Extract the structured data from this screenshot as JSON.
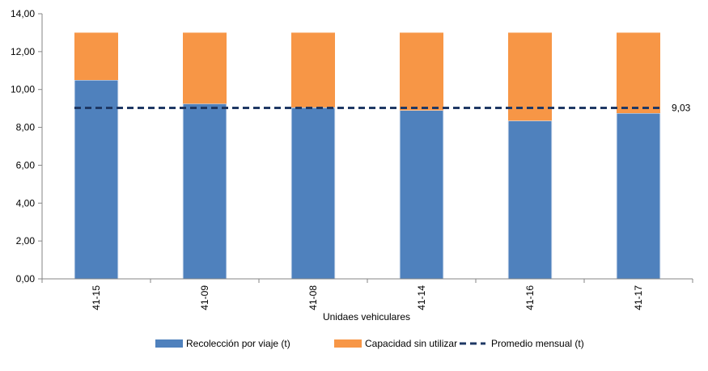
{
  "chart_data": {
    "type": "bar",
    "stacked": true,
    "categories": [
      "41-15",
      "41-09",
      "41-08",
      "41-14",
      "41-16",
      "41-17"
    ],
    "series": [
      {
        "name": "Recolección por viaje (t)",
        "values": [
          10.5,
          9.25,
          9.05,
          8.9,
          8.35,
          8.75
        ],
        "color": "#4F81BD"
      },
      {
        "name": "Capacidad sin utilizar",
        "values": [
          2.5,
          3.75,
          3.95,
          4.1,
          4.65,
          4.25
        ],
        "color": "#F79646"
      }
    ],
    "reference_line": {
      "name": "Promedio mensual (t)",
      "value": 9.03,
      "label": "9,03",
      "color": "#1F3864",
      "style": "dashed"
    },
    "xlabel": "Unidaes vehiculares",
    "ylabel": "",
    "ylim": [
      0,
      14
    ],
    "yticks": [
      "0,00",
      "2,00",
      "4,00",
      "6,00",
      "8,00",
      "10,00",
      "12,00",
      "14,00"
    ],
    "grid": false,
    "legend_position": "bottom"
  }
}
